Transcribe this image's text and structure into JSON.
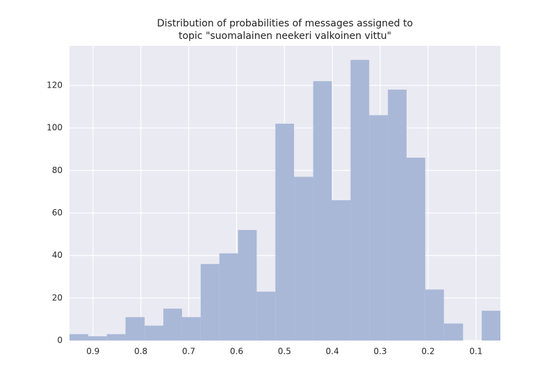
{
  "chart_data": {
    "type": "histogram",
    "title": [
      "Distribution of probabilities of messages assigned to",
      "topic \"suomalainen neekeri valkoinen vittu\""
    ],
    "bins": [
      0.049,
      0.088,
      0.127,
      0.167,
      0.206,
      0.245,
      0.284,
      0.323,
      0.362,
      0.401,
      0.44,
      0.48,
      0.519,
      0.558,
      0.597,
      0.636,
      0.675,
      0.714,
      0.753,
      0.792,
      0.832,
      0.871,
      0.91,
      0.949
    ],
    "values": [
      14,
      0,
      8,
      24,
      86,
      118,
      106,
      132,
      66,
      122,
      77,
      102,
      23,
      52,
      41,
      36,
      11,
      15,
      7,
      11,
      3,
      2,
      3
    ],
    "color": "#a9b8d7",
    "xlim": [
      0.949,
      0.049
    ],
    "xticks": [
      0.9,
      0.8,
      0.7,
      0.6,
      0.5,
      0.4,
      0.3,
      0.2,
      0.1
    ],
    "ylim": [
      0,
      138.6
    ],
    "yticks": [
      0,
      20,
      40,
      60,
      80,
      100,
      120
    ],
    "grid": true
  }
}
